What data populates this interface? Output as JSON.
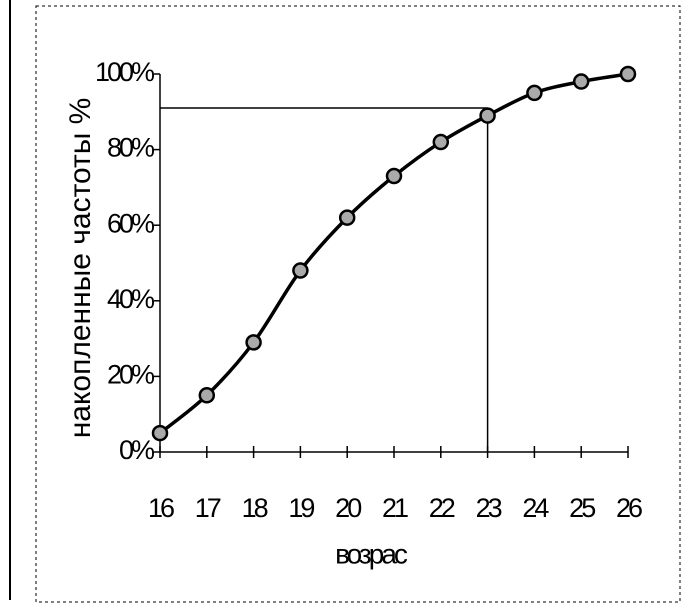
{
  "chart_data": {
    "type": "line",
    "x_label": "возрас",
    "y_label": "накопленные частоты %",
    "x": [
      16,
      17,
      18,
      19,
      20,
      21,
      22,
      23,
      24,
      25,
      26
    ],
    "series": [
      {
        "color": "#000000",
        "values": [
          5,
          15,
          29,
          48,
          62,
          73,
          82,
          89,
          95,
          98,
          100
        ]
      }
    ],
    "xlim": [
      16,
      26
    ],
    "xticks": [
      16,
      17,
      18,
      19,
      20,
      21,
      22,
      23,
      24,
      25,
      26
    ],
    "ylim": [
      0,
      100
    ],
    "yticks": [
      {
        "value": 0,
        "label": "0%"
      },
      {
        "value": 20,
        "label": "20%"
      },
      {
        "value": 40,
        "label": "40%"
      },
      {
        "value": 60,
        "label": "60%"
      },
      {
        "value": 80,
        "label": "80%"
      },
      {
        "value": 100,
        "label": "100%"
      }
    ],
    "guide": {
      "x": 23,
      "y": 91
    }
  }
}
